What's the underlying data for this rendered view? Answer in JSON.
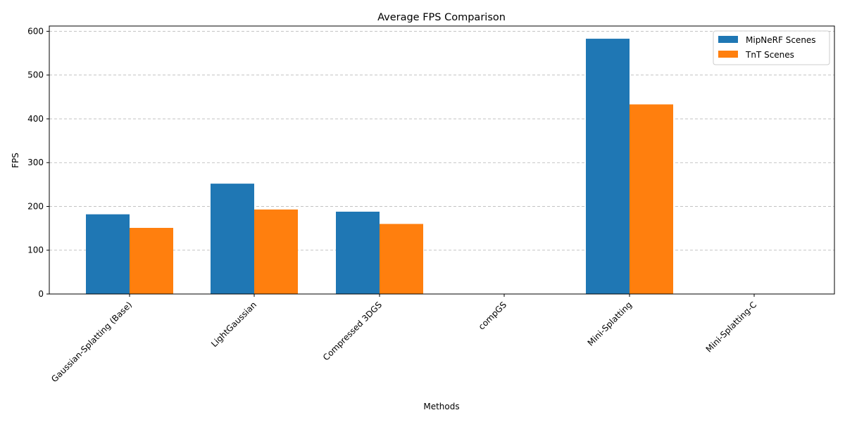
{
  "chart_data": {
    "type": "bar",
    "title": "Average FPS Comparison",
    "xlabel": "Methods",
    "ylabel": "FPS",
    "categories": [
      "Gaussian-Splatting (Base)",
      "LightGaussian",
      "Compressed 3DGS",
      "compGS",
      "Mini-Splatting",
      "Mini-Splatting-C"
    ],
    "series": [
      {
        "name": "MipNeRF Scenes",
        "color": "#1f77b4",
        "values": [
          182,
          252,
          188,
          0,
          583,
          0
        ]
      },
      {
        "name": "TnT Scenes",
        "color": "#ff7f0e",
        "values": [
          151,
          193,
          160,
          0,
          433,
          0
        ]
      }
    ],
    "ylim": [
      0,
      612
    ],
    "yticks": [
      0,
      100,
      200,
      300,
      400,
      500,
      600
    ],
    "grid": "y-dashed",
    "legend": "top-right"
  }
}
